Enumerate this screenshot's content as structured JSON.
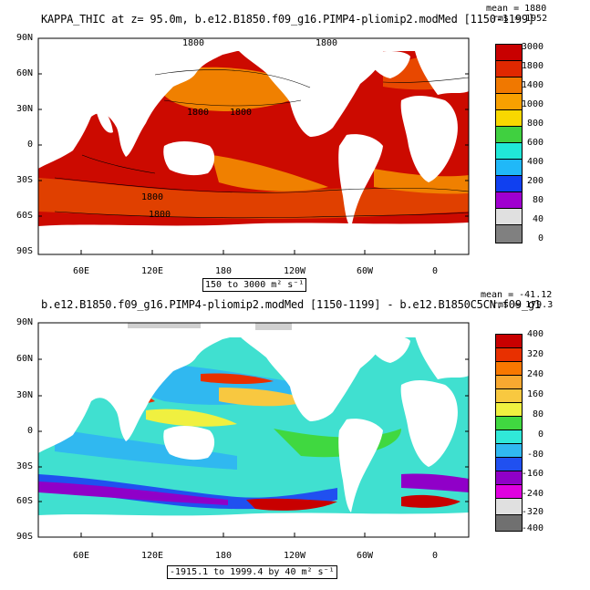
{
  "panels": [
    {
      "title": "KAPPA_THIC at z=  95.0m, b.e12.B1850.f09_g16.PIMP4-pliomip2.modMed [1150-1199]",
      "stat_mean": "mean = 1880",
      "stat_rms": "rms = 1952",
      "range_label": "150 to 3000 m² s⁻¹",
      "lat_labels": [
        "90N",
        "60N",
        "30N",
        "0",
        "30S",
        "60S",
        "90S"
      ],
      "lon_labels": [
        "60E",
        "120E",
        "180",
        "120W",
        "60W",
        "0"
      ],
      "contour_labels": [
        "1800",
        "1800",
        "1800",
        "1800",
        "1800",
        "1800"
      ],
      "colorbar": {
        "labels": [
          "3000",
          "1800",
          "1400",
          "1000",
          "800",
          "600",
          "400",
          "200",
          "80",
          "40",
          "0"
        ],
        "colors": [
          "#c80000",
          "#e02800",
          "#f07800",
          "#f8a000",
          "#f8d800",
          "#40d040",
          "#20e8d8",
          "#20b8f8",
          "#1040f0",
          "#a000d0",
          "#e0e0e0",
          "#808080"
        ]
      }
    },
    {
      "title": "b.e12.B1850.f09_g16.PIMP4-pliomip2.modMed [1150-1199] - b.e12.B1850C5CN.f09_g1",
      "stat_mean": "mean = -41.12",
      "stat_rms": "rms = 179.3",
      "range_label": "-1915.1 to 1999.4 by 40 m² s⁻¹",
      "lat_labels": [
        "90N",
        "60N",
        "30N",
        "0",
        "30S",
        "60S",
        "90S"
      ],
      "lon_labels": [
        "60E",
        "120E",
        "180",
        "120W",
        "60W",
        "0"
      ],
      "colorbar": {
        "labels": [
          "400",
          "320",
          "240",
          "160",
          "80",
          "0",
          "-80",
          "-160",
          "-240",
          "-320",
          "-400"
        ],
        "colors": [
          "#c80000",
          "#e83000",
          "#f87800",
          "#f8a830",
          "#f8c840",
          "#f0f040",
          "#40d840",
          "#30e8d8",
          "#30b8f0",
          "#2050f0",
          "#9000c8",
          "#e000e0",
          "#e0e0e0",
          "#707070"
        ]
      }
    }
  ]
}
